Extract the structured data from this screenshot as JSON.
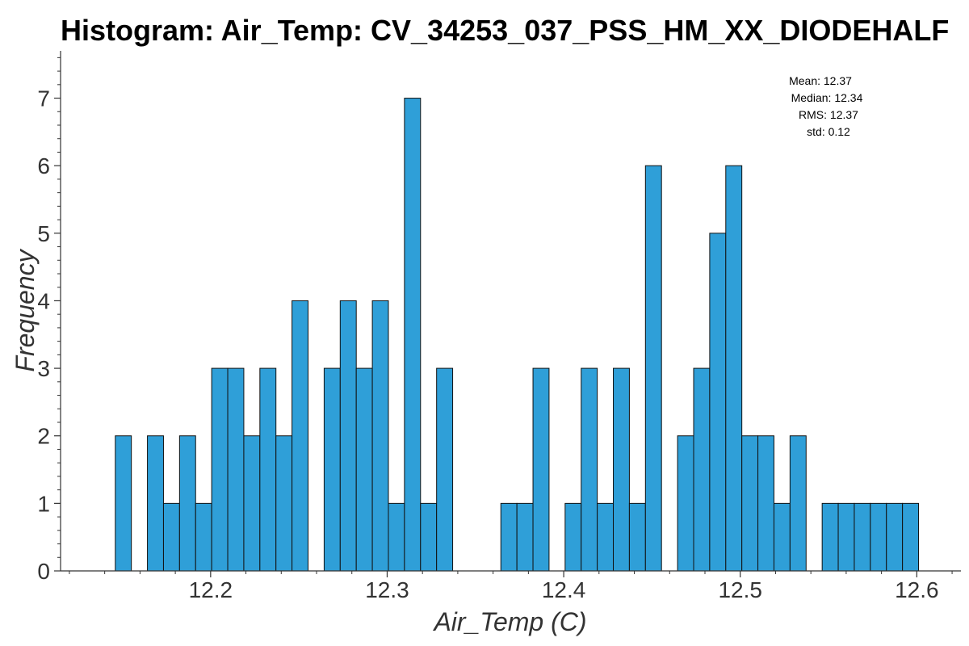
{
  "chart_data": {
    "type": "bar",
    "title": "Histogram: Air_Temp: CV_34253_037_PSS_HM_XX_DIODEHALF",
    "xlabel": "Air_Temp (C)",
    "ylabel": "Frequency",
    "xlim": [
      12.115,
      12.625
    ],
    "ylim": [
      0,
      7.7
    ],
    "bin_start": 12.146,
    "bin_width": 0.0091,
    "values": [
      2,
      0,
      2,
      1,
      2,
      1,
      3,
      3,
      2,
      3,
      2,
      4,
      0,
      3,
      4,
      3,
      4,
      1,
      7,
      1,
      3,
      0,
      0,
      0,
      1,
      1,
      3,
      0,
      1,
      3,
      1,
      3,
      1,
      6,
      0,
      2,
      3,
      5,
      6,
      2,
      2,
      1,
      2,
      0,
      1,
      1,
      1,
      1,
      1,
      1
    ],
    "xticks": [
      12.2,
      12.3,
      12.4,
      12.5,
      12.6
    ],
    "xtick_labels": [
      "12.2",
      "12.3",
      "12.4",
      "12.5",
      "12.6"
    ],
    "yticks": [
      0,
      1,
      2,
      3,
      4,
      5,
      6,
      7
    ],
    "ytick_labels": [
      "0",
      "1",
      "2",
      "3",
      "4",
      "5",
      "6",
      "7"
    ],
    "grid": false,
    "bar_color": "#2f9fd8",
    "edge_color": "#111111",
    "stats": {
      "mean": "Mean: 12.37",
      "median": "Median: 12.34",
      "rms": "RMS: 12.37",
      "std": "std: 0.12"
    }
  }
}
